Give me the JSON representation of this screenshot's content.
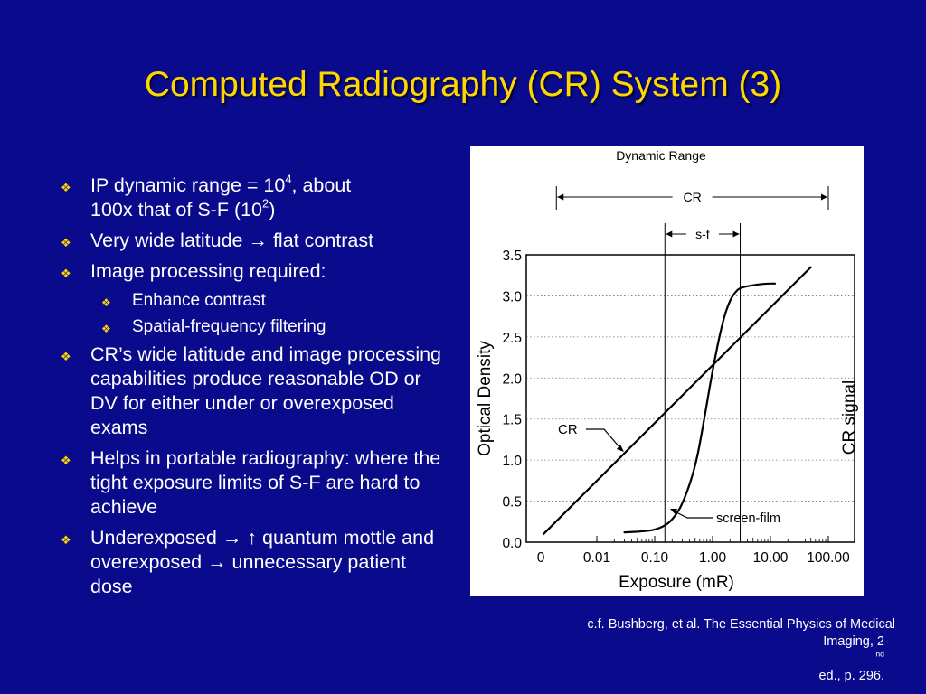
{
  "slide": {
    "title": "Computed Radiography (CR) System (3)",
    "bullets": [
      {
        "text": "IP dynamic range = 10",
        "sup": "4",
        "text_after": ", about",
        "rest": "100x that of S-F (10",
        "rest_sup": "2",
        "rest_after": ")"
      },
      {
        "text": "Very wide latitude → flat contrast"
      },
      {
        "text": "Image processing required:",
        "subitems": [
          "Enhance contrast",
          "Spatial-frequency filtering"
        ]
      },
      {
        "text": "CR’s wide latitude and image processing capabilities produce reasonable OD or DV for either under or overexposed exams"
      },
      {
        "text": "Helps in portable radiography: where the tight exposure limits of S-F are hard to achieve"
      },
      {
        "text": "Underexposed → ↑ quantum mottle and overexposed → unnecessary patient dose"
      }
    ],
    "bullet_icon": "diamond-four-point-icon",
    "citation": {
      "line1": "c.f. Bushberg, et al. The Essential Physics of Medical",
      "line2_before": "Imaging, 2",
      "line2_sup": "nd",
      "line2_after": " ed., p. 296."
    },
    "colors": {
      "background": "#0a0a8c",
      "title": "#ffd700",
      "text": "#ffffff",
      "marker": "#ffd700"
    }
  },
  "chart_data": {
    "type": "line",
    "title": "Dynamic Range",
    "xlabel": "Exposure (mR)",
    "ylabel": "Optical Density",
    "y2label": "CR signal",
    "x_scale": "log",
    "x_ticks": [
      "0",
      "0.01",
      "0.10",
      "1.00",
      "10.00",
      "100.00"
    ],
    "y_ticks": [
      "0.0",
      "0.5",
      "1.0",
      "1.5",
      "2.0",
      "2.5",
      "3.0",
      "3.5"
    ],
    "ylim": [
      0,
      3.5
    ],
    "grid": "horizontal",
    "ranges": [
      {
        "label": "CR",
        "x": [
          0.002,
          100
        ]
      },
      {
        "label": "s-f",
        "x": [
          0.15,
          3
        ]
      }
    ],
    "series": [
      {
        "name": "CR",
        "x": [
          0.0012,
          50
        ],
        "y": [
          0.1,
          3.35
        ]
      },
      {
        "name": "screen-film",
        "x": [
          0.03,
          0.06,
          0.1,
          0.15,
          0.2,
          0.3,
          0.5,
          0.7,
          1.0,
          1.5,
          2.0,
          2.5,
          3.0,
          5.0,
          8.0,
          12.0
        ],
        "y": [
          0.12,
          0.13,
          0.15,
          0.2,
          0.27,
          0.45,
          0.9,
          1.45,
          2.1,
          2.7,
          2.95,
          3.05,
          3.1,
          3.13,
          3.15,
          3.15
        ]
      }
    ],
    "annotations": [
      "CR",
      "screen-film"
    ]
  }
}
